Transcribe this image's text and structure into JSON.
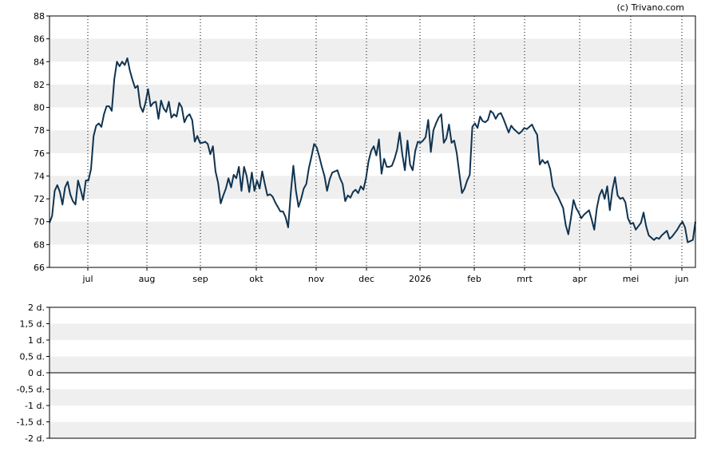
{
  "credit": "(c) Trivano.com",
  "colors": {
    "line": "#0f3350",
    "band": "#efefef",
    "frame": "#000000",
    "zero_line": "#000000"
  },
  "chart_data": [
    {
      "type": "line",
      "title": "",
      "xlabel": "",
      "ylabel": "",
      "ylim": [
        66,
        88
      ],
      "yticks": [
        "66",
        "68",
        "70",
        "72",
        "74",
        "76",
        "78",
        "80",
        "82",
        "84",
        "86",
        "88"
      ],
      "x_month_labels": [
        "jul",
        "aug",
        "sep",
        "okt",
        "nov",
        "dec",
        "2026",
        "feb",
        "mrt",
        "apr",
        "mei",
        "jun"
      ],
      "grid": "horizontal bands every 2, vertical dotted lines at month starts",
      "legend": "none",
      "series": [
        {
          "values": [
            69.9,
            70.5,
            72.7,
            73.2,
            72.6,
            71.5,
            73.0,
            73.5,
            72.4,
            71.8,
            71.5,
            73.6,
            72.8,
            71.9,
            73.6,
            73.6,
            74.6,
            77.5,
            78.4,
            78.6,
            78.3,
            79.4,
            80.1,
            80.1,
            79.7,
            82.5,
            84.0,
            83.6,
            84.0,
            83.7,
            84.3,
            83.2,
            82.4,
            81.7,
            81.9,
            80.1,
            79.6,
            80.4,
            81.6,
            80.1,
            80.4,
            80.5,
            79.0,
            80.6,
            79.9,
            79.6,
            80.5,
            79.1,
            79.4,
            79.2,
            80.4,
            80.0,
            78.7,
            79.2,
            79.4,
            78.9,
            77.0,
            77.5,
            76.9,
            76.9,
            77.0,
            76.8,
            75.9,
            76.6,
            74.4,
            73.4,
            71.6,
            72.3,
            72.9,
            73.8,
            73.0,
            74.1,
            73.8,
            74.8,
            72.7,
            74.8,
            74.0,
            72.6,
            74.3,
            72.7,
            73.6,
            72.9,
            74.4,
            73.3,
            72.3,
            72.4,
            72.2,
            71.7,
            71.3,
            70.9,
            70.9,
            70.4,
            69.5,
            72.5,
            74.9,
            72.7,
            71.3,
            72.0,
            72.9,
            73.3,
            74.7,
            75.7,
            76.8,
            76.5,
            75.7,
            74.8,
            74.0,
            72.7,
            73.7,
            74.3,
            74.4,
            74.5,
            73.8,
            73.3,
            71.8,
            72.3,
            72.1,
            72.6,
            72.8,
            72.5,
            73.1,
            72.8,
            73.8,
            75.3,
            76.2,
            76.6,
            75.8,
            77.2,
            74.2,
            75.5,
            74.8,
            74.8,
            74.9,
            75.5,
            76.3,
            77.8,
            75.9,
            74.5,
            77.1,
            75.0,
            74.5,
            76.2,
            77.0,
            76.9,
            77.1,
            77.4,
            78.9,
            76.1,
            78.0,
            78.6,
            79.1,
            79.4,
            76.9,
            77.3,
            78.5,
            76.9,
            77.1,
            76.0,
            74.2,
            72.5,
            72.9,
            73.6,
            74.1,
            78.3,
            78.6,
            78.2,
            79.2,
            78.8,
            78.7,
            78.9,
            79.7,
            79.5,
            79.0,
            79.4,
            79.5,
            79.0,
            78.4,
            77.8,
            78.4,
            78.1,
            77.9,
            77.7,
            77.9,
            78.2,
            78.1,
            78.3,
            78.5,
            78.0,
            77.6,
            75.0,
            75.4,
            75.1,
            75.3,
            74.6,
            73.1,
            72.6,
            72.2,
            71.7,
            71.2,
            69.7,
            68.9,
            70.3,
            71.9,
            71.2,
            70.8,
            70.3,
            70.6,
            70.8,
            71.0,
            70.2,
            69.3,
            71.2,
            72.3,
            72.8,
            72.0,
            73.1,
            71.0,
            72.8,
            73.9,
            72.3,
            72.0,
            72.1,
            71.7,
            70.3,
            69.8,
            69.9,
            69.3,
            69.6,
            69.9,
            70.8,
            69.6,
            68.8,
            68.6,
            68.4,
            68.6,
            68.5,
            68.8,
            69.0,
            69.2,
            68.5,
            68.7,
            69.0,
            69.3,
            69.7,
            70.0,
            69.5,
            68.2,
            68.3,
            68.4,
            70.0
          ]
        }
      ]
    },
    {
      "type": "line",
      "title": "",
      "xlabel": "",
      "ylabel": "",
      "ylim": [
        -2,
        2
      ],
      "yticks": [
        "-2 d.",
        "-1,5 d.",
        "-1 d.",
        "-0,5 d.",
        "0 d.",
        "0,5 d.",
        "1 d.",
        "1,5 d.",
        "2 d."
      ],
      "grid": "horizontal bands every 0.5",
      "legend": "none",
      "series": []
    }
  ]
}
